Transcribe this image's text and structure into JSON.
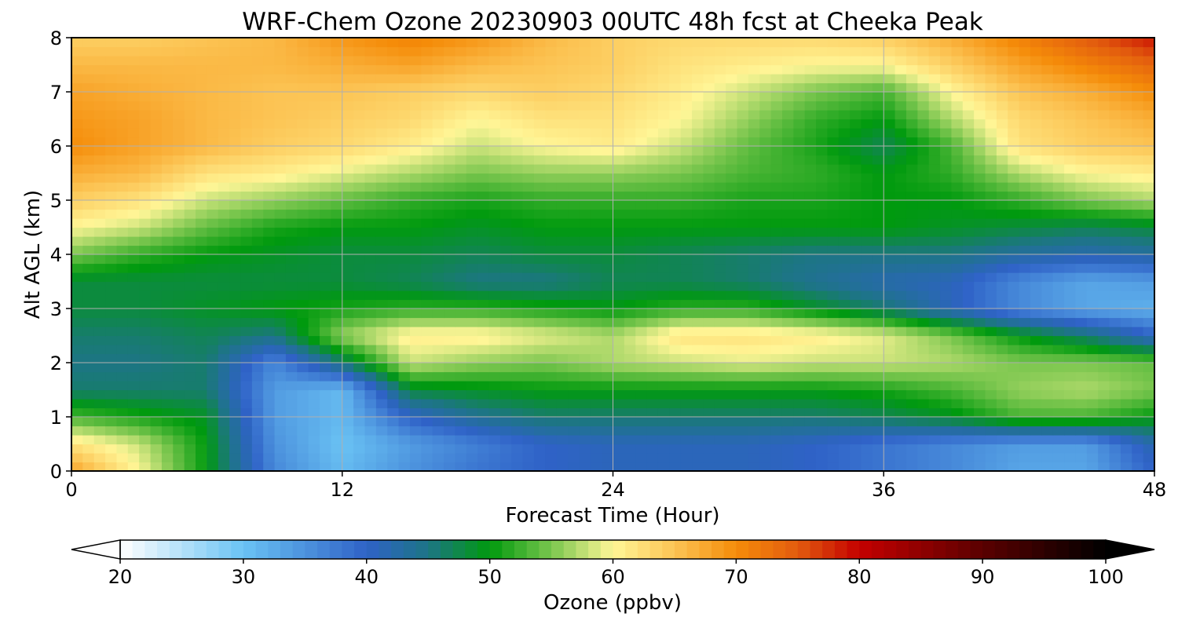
{
  "chart_data": {
    "type": "heatmap",
    "title": "WRF-Chem Ozone  20230903 00UTC 48h fcst at Cheeka Peak",
    "xlabel": "Forecast Time (Hour)",
    "ylabel": "Alt AGL (km)",
    "xlim": [
      0,
      48
    ],
    "ylim": [
      0,
      8
    ],
    "xticks": [
      "0",
      "12",
      "24",
      "36",
      "48"
    ],
    "yticks": [
      "0",
      "1",
      "2",
      "3",
      "4",
      "5",
      "6",
      "7",
      "8"
    ],
    "grid": true,
    "x": [
      0,
      3,
      6,
      9,
      12,
      15,
      18,
      21,
      24,
      27,
      30,
      33,
      36,
      39,
      42,
      45,
      48
    ],
    "y": [
      0,
      0.5,
      1,
      1.5,
      2,
      2.5,
      3,
      3.5,
      4,
      4.5,
      5,
      5.5,
      6,
      6.5,
      7,
      7.5,
      8
    ],
    "z": [
      [
        68,
        60,
        50,
        36,
        31,
        35,
        38,
        40,
        41,
        41,
        41,
        40,
        38,
        36,
        33,
        33,
        40
      ],
      [
        62,
        58,
        50,
        35,
        30,
        34,
        37,
        40,
        41,
        41,
        41,
        40,
        38,
        36,
        34,
        34,
        42
      ],
      [
        53,
        51,
        49,
        34,
        31,
        40,
        44,
        46,
        46,
        46,
        46,
        46,
        47,
        49,
        53,
        53,
        50
      ],
      [
        46,
        46,
        46,
        34,
        31,
        48,
        49,
        50,
        50,
        50,
        50,
        50,
        51,
        53,
        56,
        57,
        55
      ],
      [
        45,
        45,
        46,
        36,
        46,
        58,
        56,
        55,
        57,
        58,
        59,
        58,
        58,
        57,
        55,
        55,
        54
      ],
      [
        46,
        46,
        47,
        45,
        56,
        61,
        61,
        59,
        57,
        62,
        62,
        61,
        59,
        55,
        50,
        46,
        40
      ],
      [
        48,
        48,
        49,
        50,
        51,
        52,
        52,
        51,
        50,
        52,
        52,
        49,
        46,
        41,
        36,
        33,
        32
      ],
      [
        48,
        48,
        48,
        48,
        48,
        47,
        45,
        45,
        47,
        47,
        46,
        44,
        42,
        41,
        36,
        33,
        34
      ],
      [
        55,
        52,
        50,
        49,
        48,
        48,
        47,
        48,
        48,
        47,
        46,
        45,
        45,
        45,
        43,
        42,
        43
      ],
      [
        60,
        58,
        54,
        51,
        50,
        50,
        49,
        50,
        50,
        50,
        50,
        50,
        50,
        49,
        48,
        47,
        48
      ],
      [
        64,
        62,
        58,
        56,
        54,
        52,
        51,
        52,
        52,
        52,
        51,
        51,
        50,
        50,
        52,
        55,
        57
      ],
      [
        67,
        66,
        62,
        61,
        59,
        57,
        55,
        56,
        56,
        55,
        53,
        52,
        50,
        52,
        57,
        60,
        61
      ],
      [
        70,
        68,
        66,
        64,
        63,
        61,
        58,
        60,
        61,
        58,
        54,
        51,
        47,
        53,
        62,
        64,
        65
      ],
      [
        69,
        68,
        66,
        65,
        64,
        63,
        60,
        62,
        62,
        60,
        56,
        52,
        50,
        57,
        63,
        65,
        67
      ],
      [
        68,
        67,
        66,
        65,
        65,
        64,
        63,
        64,
        63,
        61,
        58,
        55,
        53,
        60,
        65,
        67,
        70
      ],
      [
        66,
        66,
        66,
        66,
        67,
        68,
        66,
        65,
        64,
        62,
        61,
        60,
        60,
        64,
        68,
        71,
        74
      ],
      [
        64,
        64,
        65,
        66,
        69,
        71,
        69,
        66,
        64,
        63,
        63,
        63,
        64,
        67,
        71,
        75,
        79
      ]
    ],
    "colorbar": {
      "label": "Ozone  (ppbv)",
      "min": 20,
      "max": 100,
      "ticks": [
        "20",
        "30",
        "40",
        "50",
        "60",
        "70",
        "80",
        "90",
        "100"
      ],
      "extend": "both",
      "stops": [
        {
          "v": 20,
          "c": "#ffffff"
        },
        {
          "v": 30,
          "c": "#6ac3f4"
        },
        {
          "v": 40,
          "c": "#2f62c7"
        },
        {
          "v": 45,
          "c": "#1d7585"
        },
        {
          "v": 50,
          "c": "#009a0e"
        },
        {
          "v": 55,
          "c": "#7ac64e"
        },
        {
          "v": 60,
          "c": "#fff697"
        },
        {
          "v": 65,
          "c": "#fcc454"
        },
        {
          "v": 70,
          "c": "#f58c09"
        },
        {
          "v": 75,
          "c": "#e25b0e"
        },
        {
          "v": 80,
          "c": "#c40000"
        },
        {
          "v": 90,
          "c": "#5a0000"
        },
        {
          "v": 100,
          "c": "#000000"
        }
      ]
    }
  }
}
